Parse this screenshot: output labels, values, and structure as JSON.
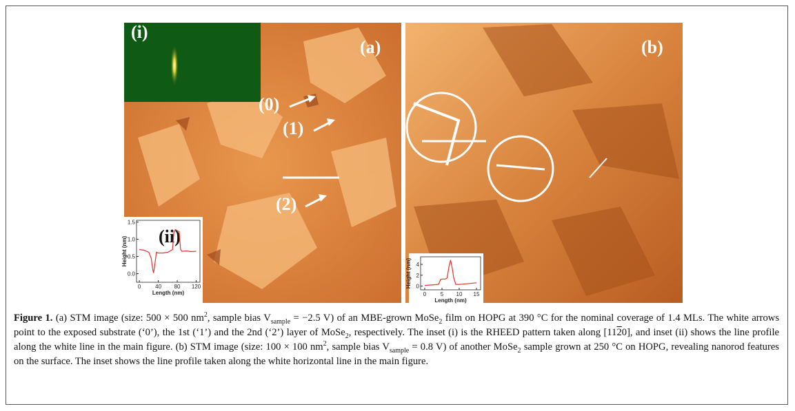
{
  "figure": {
    "panel_a": {
      "label": "(a)",
      "inset_label": "(i)",
      "profile_label": "(ii)",
      "arrows": [
        "(0)",
        "(1)",
        "(2)"
      ]
    },
    "panel_b": {
      "label": "(b)"
    }
  },
  "chart_data": [
    {
      "type": "line",
      "xlabel": "Length (nm)",
      "ylabel": "Height (nm)",
      "color": "#e8302a",
      "x": [
        0,
        10,
        20,
        25,
        28,
        30,
        33,
        36,
        40,
        50,
        60,
        70,
        73,
        76,
        80,
        84,
        87,
        90,
        100,
        110,
        120
      ],
      "values": [
        0.7,
        0.68,
        0.62,
        0.45,
        0.15,
        0.02,
        0.3,
        0.62,
        0.6,
        0.6,
        0.62,
        0.7,
        1.2,
        1.28,
        1.25,
        1.22,
        0.7,
        0.65,
        0.66,
        0.64,
        0.65
      ],
      "xlim": [
        -6,
        128
      ],
      "ylim": [
        -0.25,
        1.55
      ],
      "xticks": [
        0,
        40,
        80,
        120
      ],
      "yticks": [
        {
          "value": 0,
          "label": "0.0"
        },
        {
          "value": 0.5,
          "label": "0.5"
        },
        {
          "value": 1,
          "label": "1.0"
        },
        {
          "value": 1.5,
          "label": "1.5"
        }
      ]
    },
    {
      "type": "line",
      "xlabel": "Length (nm)",
      "ylabel": "Height (nm)",
      "color": "#e8302a",
      "x": [
        0,
        2,
        4,
        4.6,
        5,
        6,
        6.5,
        7,
        7.5,
        8,
        8.4,
        9,
        10,
        12,
        15
      ],
      "values": [
        0.1,
        0.2,
        0.3,
        1.2,
        1.3,
        1.3,
        1.5,
        3.5,
        4.8,
        3.2,
        1.5,
        0.3,
        0.3,
        0.4,
        0.6
      ],
      "xlim": [
        -1.2,
        16.2
      ],
      "ylim": [
        -0.7,
        5.4
      ],
      "xticks": [
        0,
        5,
        10,
        15
      ],
      "yticks": [
        0,
        2,
        4
      ]
    }
  ],
  "caption": [
    {
      "text": "Figure 1.",
      "style": "bold"
    },
    {
      "text": " (a) STM image (size: 500 × 500 nm"
    },
    {
      "text": "2",
      "style": "sup"
    },
    {
      "text": ", sample bias V"
    },
    {
      "text": "sample",
      "style": "sub"
    },
    {
      "text": " = −2.5 V) of an MBE-grown MoSe"
    },
    {
      "text": "2",
      "style": "sub"
    },
    {
      "text": " film on HOPG at 390 °C for the nominal coverage of 1.4 MLs. The white arrows point to the exposed substrate (‘0’), the 1st (‘1’) and the 2nd (‘2’) layer of MoSe"
    },
    {
      "text": "2",
      "style": "sub"
    },
    {
      "text": ", respectively. The inset (i) is the RHEED pattern taken along [11"
    },
    {
      "text": "2",
      "style": "overline"
    },
    {
      "text": "0], and inset (ii) shows the line profile along the white line in the main figure. (b) STM image (size: 100 × 100 nm"
    },
    {
      "text": "2",
      "style": "sup"
    },
    {
      "text": ", sample bias V"
    },
    {
      "text": "sample",
      "style": "sub"
    },
    {
      "text": " = 0.8 V) of another MoSe"
    },
    {
      "text": "2",
      "style": "sub"
    },
    {
      "text": " sample grown at 250 °C on HOPG, revealing nanorod features on the surface. The inset shows the line profile taken along the white horizontal line in the main figure."
    }
  ]
}
